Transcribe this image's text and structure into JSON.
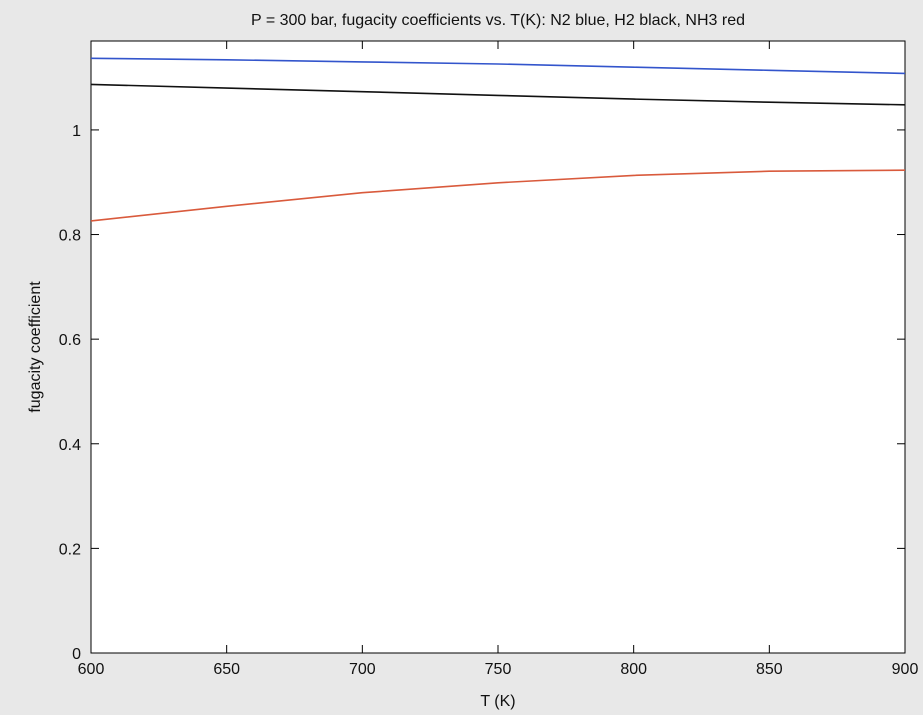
{
  "chart_data": {
    "type": "line",
    "title": "P = 300 bar, fugacity coefficients vs. T(K): N2 blue, H2 black, NH3 red",
    "xlabel": "T (K)",
    "ylabel": "fugacity coefficient",
    "xlim": [
      600,
      900
    ],
    "ylim": [
      0,
      1.17
    ],
    "xticks": [
      600,
      650,
      700,
      750,
      800,
      850,
      900
    ],
    "xtick_labels": [
      "600",
      "650",
      "700",
      "750",
      "800",
      "850",
      "900"
    ],
    "yticks": [
      0,
      0.2,
      0.4,
      0.6,
      0.8,
      1
    ],
    "ytick_labels": [
      "0",
      "0.2",
      "0.4",
      "0.6",
      "0.8",
      "1"
    ],
    "grid": false,
    "legend": "none",
    "x": [
      600,
      650,
      700,
      750,
      800,
      850,
      900
    ],
    "series": [
      {
        "color": "#3355cc",
        "values": [
          1.137,
          1.134,
          1.13,
          1.126,
          1.12,
          1.114,
          1.108
        ]
      },
      {
        "color": "#111111",
        "values": [
          1.087,
          1.08,
          1.073,
          1.066,
          1.059,
          1.053,
          1.048
        ]
      },
      {
        "color": "#d95a3c",
        "values": [
          0.826,
          0.854,
          0.88,
          0.899,
          0.913,
          0.921,
          0.923
        ]
      }
    ]
  }
}
